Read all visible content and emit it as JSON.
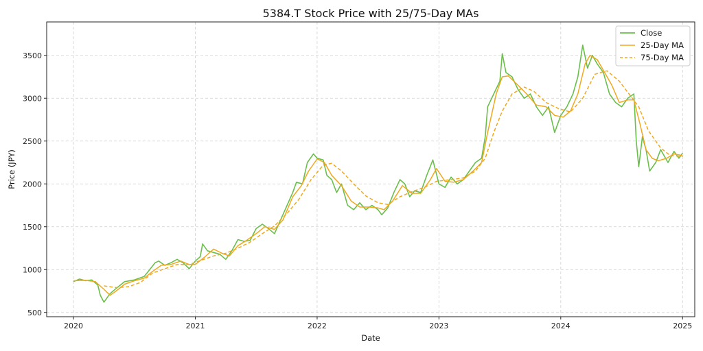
{
  "chart_data": {
    "type": "line",
    "title": "5384.T Stock Price with 25/75-Day MAs",
    "xlabel": "Date",
    "ylabel": "Price (JPY)",
    "x_ticks": [
      "2020",
      "2021",
      "2022",
      "2023",
      "2024",
      "2025"
    ],
    "y_ticks": [
      500,
      1000,
      1500,
      2000,
      2500,
      3000,
      3500
    ],
    "xlim": [
      2019.78,
      2025.1
    ],
    "ylim": [
      450,
      3890
    ],
    "grid": true,
    "legend_position": "top-right",
    "colors": {
      "close": "#6abf4b",
      "ma25": "#f0a81c",
      "ma75": "#f0a81c"
    },
    "series": [
      {
        "name": "Close",
        "style": "solid",
        "points": [
          [
            2020.0,
            860
          ],
          [
            2020.05,
            890
          ],
          [
            2020.1,
            870
          ],
          [
            2020.15,
            880
          ],
          [
            2020.2,
            820
          ],
          [
            2020.22,
            700
          ],
          [
            2020.25,
            620
          ],
          [
            2020.3,
            720
          ],
          [
            2020.35,
            780
          ],
          [
            2020.42,
            860
          ],
          [
            2020.5,
            880
          ],
          [
            2020.58,
            920
          ],
          [
            2020.62,
            990
          ],
          [
            2020.67,
            1080
          ],
          [
            2020.7,
            1100
          ],
          [
            2020.75,
            1050
          ],
          [
            2020.8,
            1080
          ],
          [
            2020.85,
            1120
          ],
          [
            2020.9,
            1080
          ],
          [
            2020.95,
            1010
          ],
          [
            2021.0,
            1100
          ],
          [
            2021.04,
            1150
          ],
          [
            2021.06,
            1300
          ],
          [
            2021.1,
            1220
          ],
          [
            2021.15,
            1200
          ],
          [
            2021.2,
            1180
          ],
          [
            2021.25,
            1120
          ],
          [
            2021.3,
            1220
          ],
          [
            2021.35,
            1350
          ],
          [
            2021.4,
            1330
          ],
          [
            2021.45,
            1340
          ],
          [
            2021.5,
            1480
          ],
          [
            2021.55,
            1530
          ],
          [
            2021.6,
            1480
          ],
          [
            2021.65,
            1420
          ],
          [
            2021.7,
            1580
          ],
          [
            2021.75,
            1740
          ],
          [
            2021.8,
            1900
          ],
          [
            2021.83,
            2020
          ],
          [
            2021.88,
            2000
          ],
          [
            2021.92,
            2250
          ],
          [
            2021.97,
            2350
          ],
          [
            2022.0,
            2300
          ],
          [
            2022.05,
            2280
          ],
          [
            2022.08,
            2100
          ],
          [
            2022.12,
            2050
          ],
          [
            2022.16,
            1900
          ],
          [
            2022.2,
            2000
          ],
          [
            2022.25,
            1750
          ],
          [
            2022.3,
            1700
          ],
          [
            2022.35,
            1780
          ],
          [
            2022.4,
            1700
          ],
          [
            2022.45,
            1750
          ],
          [
            2022.5,
            1700
          ],
          [
            2022.53,
            1640
          ],
          [
            2022.58,
            1720
          ],
          [
            2022.63,
            1900
          ],
          [
            2022.68,
            2050
          ],
          [
            2022.72,
            2000
          ],
          [
            2022.76,
            1850
          ],
          [
            2022.8,
            1920
          ],
          [
            2022.85,
            1900
          ],
          [
            2022.9,
            2100
          ],
          [
            2022.95,
            2280
          ],
          [
            2023.0,
            2000
          ],
          [
            2023.05,
            1960
          ],
          [
            2023.1,
            2080
          ],
          [
            2023.15,
            2000
          ],
          [
            2023.2,
            2050
          ],
          [
            2023.25,
            2150
          ],
          [
            2023.3,
            2250
          ],
          [
            2023.35,
            2300
          ],
          [
            2023.38,
            2550
          ],
          [
            2023.4,
            2900
          ],
          [
            2023.45,
            3050
          ],
          [
            2023.5,
            3200
          ],
          [
            2023.52,
            3520
          ],
          [
            2023.55,
            3300
          ],
          [
            2023.6,
            3250
          ],
          [
            2023.65,
            3100
          ],
          [
            2023.7,
            3000
          ],
          [
            2023.75,
            3050
          ],
          [
            2023.8,
            2900
          ],
          [
            2023.85,
            2800
          ],
          [
            2023.9,
            2900
          ],
          [
            2023.95,
            2600
          ],
          [
            2024.0,
            2800
          ],
          [
            2024.05,
            2900
          ],
          [
            2024.1,
            3050
          ],
          [
            2024.14,
            3250
          ],
          [
            2024.18,
            3620
          ],
          [
            2024.22,
            3350
          ],
          [
            2024.26,
            3500
          ],
          [
            2024.3,
            3400
          ],
          [
            2024.35,
            3300
          ],
          [
            2024.4,
            3050
          ],
          [
            2024.45,
            2950
          ],
          [
            2024.5,
            2900
          ],
          [
            2024.55,
            3000
          ],
          [
            2024.6,
            3050
          ],
          [
            2024.62,
            2500
          ],
          [
            2024.64,
            2200
          ],
          [
            2024.67,
            2550
          ],
          [
            2024.7,
            2400
          ],
          [
            2024.73,
            2150
          ],
          [
            2024.78,
            2250
          ],
          [
            2024.82,
            2400
          ],
          [
            2024.88,
            2250
          ],
          [
            2024.93,
            2380
          ],
          [
            2024.97,
            2300
          ],
          [
            2025.0,
            2360
          ]
        ]
      },
      {
        "name": "25-Day MA",
        "style": "solid",
        "points": [
          [
            2020.0,
            870
          ],
          [
            2020.1,
            875
          ],
          [
            2020.18,
            860
          ],
          [
            2020.25,
            770
          ],
          [
            2020.3,
            700
          ],
          [
            2020.35,
            750
          ],
          [
            2020.42,
            830
          ],
          [
            2020.5,
            870
          ],
          [
            2020.58,
            900
          ],
          [
            2020.65,
            980
          ],
          [
            2020.72,
            1050
          ],
          [
            2020.8,
            1060
          ],
          [
            2020.88,
            1100
          ],
          [
            2020.95,
            1060
          ],
          [
            2021.0,
            1060
          ],
          [
            2021.08,
            1150
          ],
          [
            2021.15,
            1240
          ],
          [
            2021.22,
            1190
          ],
          [
            2021.28,
            1160
          ],
          [
            2021.35,
            1280
          ],
          [
            2021.42,
            1340
          ],
          [
            2021.5,
            1420
          ],
          [
            2021.57,
            1500
          ],
          [
            2021.65,
            1470
          ],
          [
            2021.72,
            1580
          ],
          [
            2021.8,
            1850
          ],
          [
            2021.87,
            1980
          ],
          [
            2021.93,
            2150
          ],
          [
            2022.0,
            2290
          ],
          [
            2022.06,
            2250
          ],
          [
            2022.12,
            2100
          ],
          [
            2022.2,
            1980
          ],
          [
            2022.28,
            1800
          ],
          [
            2022.35,
            1730
          ],
          [
            2022.43,
            1730
          ],
          [
            2022.5,
            1720
          ],
          [
            2022.55,
            1700
          ],
          [
            2022.62,
            1800
          ],
          [
            2022.7,
            1980
          ],
          [
            2022.78,
            1890
          ],
          [
            2022.85,
            1890
          ],
          [
            2022.93,
            2050
          ],
          [
            2022.98,
            2180
          ],
          [
            2023.05,
            2030
          ],
          [
            2023.12,
            2020
          ],
          [
            2023.2,
            2050
          ],
          [
            2023.28,
            2150
          ],
          [
            2023.35,
            2250
          ],
          [
            2023.4,
            2600
          ],
          [
            2023.47,
            3050
          ],
          [
            2023.52,
            3250
          ],
          [
            2023.57,
            3260
          ],
          [
            2023.65,
            3150
          ],
          [
            2023.72,
            3050
          ],
          [
            2023.8,
            2920
          ],
          [
            2023.88,
            2900
          ],
          [
            2023.95,
            2800
          ],
          [
            2024.02,
            2780
          ],
          [
            2024.08,
            2850
          ],
          [
            2024.14,
            3050
          ],
          [
            2024.2,
            3400
          ],
          [
            2024.24,
            3500
          ],
          [
            2024.3,
            3450
          ],
          [
            2024.36,
            3300
          ],
          [
            2024.42,
            3150
          ],
          [
            2024.48,
            2950
          ],
          [
            2024.55,
            2980
          ],
          [
            2024.6,
            2980
          ],
          [
            2024.65,
            2700
          ],
          [
            2024.7,
            2400
          ],
          [
            2024.75,
            2300
          ],
          [
            2024.8,
            2270
          ],
          [
            2024.87,
            2300
          ],
          [
            2024.93,
            2350
          ],
          [
            2025.0,
            2330
          ]
        ]
      },
      {
        "name": "75-Day MA",
        "style": "dashed",
        "points": [
          [
            2020.25,
            810
          ],
          [
            2020.35,
            790
          ],
          [
            2020.45,
            800
          ],
          [
            2020.55,
            850
          ],
          [
            2020.65,
            960
          ],
          [
            2020.75,
            1010
          ],
          [
            2020.85,
            1060
          ],
          [
            2020.95,
            1060
          ],
          [
            2021.05,
            1110
          ],
          [
            2021.15,
            1160
          ],
          [
            2021.25,
            1190
          ],
          [
            2021.35,
            1250
          ],
          [
            2021.45,
            1320
          ],
          [
            2021.55,
            1420
          ],
          [
            2021.65,
            1510
          ],
          [
            2021.75,
            1650
          ],
          [
            2021.85,
            1820
          ],
          [
            2021.95,
            2050
          ],
          [
            2022.05,
            2220
          ],
          [
            2022.12,
            2240
          ],
          [
            2022.2,
            2150
          ],
          [
            2022.3,
            2000
          ],
          [
            2022.4,
            1860
          ],
          [
            2022.5,
            1780
          ],
          [
            2022.58,
            1760
          ],
          [
            2022.68,
            1850
          ],
          [
            2022.78,
            1910
          ],
          [
            2022.88,
            1960
          ],
          [
            2022.98,
            2030
          ],
          [
            2023.1,
            2050
          ],
          [
            2023.2,
            2070
          ],
          [
            2023.3,
            2150
          ],
          [
            2023.38,
            2300
          ],
          [
            2023.45,
            2600
          ],
          [
            2023.52,
            2850
          ],
          [
            2023.6,
            3050
          ],
          [
            2023.7,
            3130
          ],
          [
            2023.78,
            3080
          ],
          [
            2023.88,
            2950
          ],
          [
            2023.98,
            2880
          ],
          [
            2024.08,
            2840
          ],
          [
            2024.18,
            3000
          ],
          [
            2024.28,
            3280
          ],
          [
            2024.38,
            3320
          ],
          [
            2024.48,
            3200
          ],
          [
            2024.56,
            3050
          ],
          [
            2024.64,
            2900
          ],
          [
            2024.72,
            2620
          ],
          [
            2024.82,
            2420
          ],
          [
            2024.9,
            2330
          ],
          [
            2025.0,
            2320
          ]
        ]
      }
    ]
  }
}
